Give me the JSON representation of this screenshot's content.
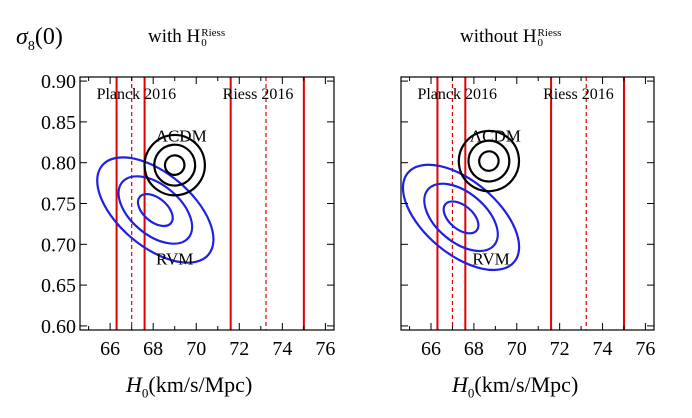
{
  "figure": {
    "y_axis_label": {
      "function": "σ",
      "subscript": "8",
      "argument": "(0)"
    },
    "panel_titles": [
      {
        "prefix": "with",
        "symbol": "H",
        "sub": "0",
        "sup": "Riess"
      },
      {
        "prefix": "without",
        "symbol": "H",
        "sub": "0",
        "sup": "Riess"
      }
    ],
    "x_axis_label": {
      "symbol": "H",
      "sub": "0",
      "units": "(km/s/Mpc)"
    }
  },
  "chart_data": [
    {
      "type": "contour",
      "title": "with H0^Riess",
      "xlabel": "H0 (km/s/Mpc)",
      "ylabel": "σ8(0)",
      "xlim": [
        64.6,
        76.4
      ],
      "ylim": [
        0.595,
        0.905
      ],
      "xticks": [
        66,
        68,
        70,
        72,
        74,
        76
      ],
      "yticks": [
        0.6,
        0.65,
        0.7,
        0.75,
        0.8,
        0.85,
        0.9
      ],
      "ytick_labels": [
        "0.60",
        "0.65",
        "0.70",
        "0.75",
        "0.80",
        "0.85",
        "0.90"
      ],
      "grid": false,
      "vertical_bands": [
        {
          "name": "Planck 2016",
          "center": 67.0,
          "lower": 66.3,
          "upper": 67.6,
          "color": "#e00000"
        },
        {
          "name": "Riess 2016",
          "center": 73.24,
          "lower": 71.6,
          "upper": 75.0,
          "color": "#e00000"
        }
      ],
      "contours": [
        {
          "name": "ΛCDM",
          "color": "#000000",
          "center": [
            69.0,
            0.797
          ],
          "levels": [
            {
              "semi_axes": [
                0.45,
                0.012
              ]
            },
            {
              "semi_axes": [
                0.95,
                0.025
              ]
            },
            {
              "semi_axes": [
                1.4,
                0.037
              ]
            }
          ]
        },
        {
          "name": "RVM",
          "color": "#2020e0",
          "center": [
            68.1,
            0.742
          ],
          "levels": [
            {
              "semi_axes": [
                0.55,
                0.025
              ]
            },
            {
              "semi_axes": [
                1.15,
                0.053
              ]
            },
            {
              "semi_axes": [
                1.7,
                0.085
              ]
            }
          ]
        }
      ],
      "annotations": [
        {
          "text": "ΛCDM",
          "x": 69.3,
          "y": 0.826
        },
        {
          "text": "RVM",
          "x": 69.0,
          "y": 0.675
        }
      ]
    },
    {
      "type": "contour",
      "title": "without H0^Riess",
      "xlabel": "H0 (km/s/Mpc)",
      "ylabel": "σ8(0)",
      "xlim": [
        64.6,
        76.4
      ],
      "ylim": [
        0.595,
        0.905
      ],
      "xticks": [
        66,
        68,
        70,
        72,
        74,
        76
      ],
      "yticks": [
        0.6,
        0.65,
        0.7,
        0.75,
        0.8,
        0.85,
        0.9
      ],
      "grid": false,
      "vertical_bands": [
        {
          "name": "Planck 2016",
          "center": 67.0,
          "lower": 66.3,
          "upper": 67.6,
          "color": "#e00000"
        },
        {
          "name": "Riess 2016",
          "center": 73.24,
          "lower": 71.6,
          "upper": 75.0,
          "color": "#e00000"
        }
      ],
      "contours": [
        {
          "name": "ΛCDM",
          "color": "#000000",
          "center": [
            68.7,
            0.802
          ],
          "levels": [
            {
              "semi_axes": [
                0.45,
                0.012
              ]
            },
            {
              "semi_axes": [
                0.95,
                0.025
              ]
            },
            {
              "semi_axes": [
                1.4,
                0.037
              ]
            }
          ]
        },
        {
          "name": "RVM",
          "color": "#2020e0",
          "center": [
            67.4,
            0.733
          ],
          "levels": [
            {
              "semi_axes": [
                0.55,
                0.025
              ]
            },
            {
              "semi_axes": [
                1.15,
                0.053
              ]
            },
            {
              "semi_axes": [
                1.7,
                0.085
              ]
            }
          ]
        }
      ],
      "annotations": [
        {
          "text": "ΛCDM",
          "x": 69.0,
          "y": 0.826
        },
        {
          "text": "RVM",
          "x": 68.8,
          "y": 0.675
        }
      ]
    }
  ]
}
